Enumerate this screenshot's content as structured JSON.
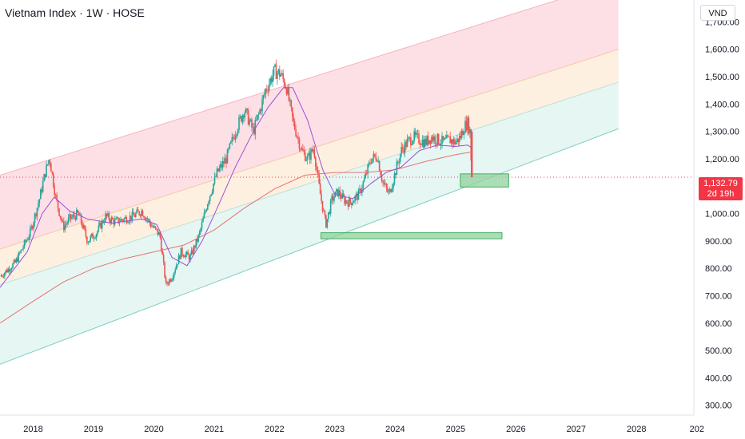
{
  "header": {
    "title": "Vietnam Index · 1W · HOSE",
    "currency": "VND"
  },
  "price_tag": {
    "value": "1,132.79",
    "countdown": "2d 19h"
  },
  "colors": {
    "up": "#26a69a",
    "down": "#ef5350",
    "ma_short": "#9c4fd6",
    "ma_long": "#e57373",
    "channel_top": "#f9c7cf",
    "channel_mid": "#fde3c6",
    "channel_low": "#d2efe9",
    "zone": "#8fd19e",
    "price_line": "#f23645"
  },
  "chart_data": {
    "type": "candlestick",
    "title": "Vietnam Index · 1W · HOSE",
    "x_ticks": [
      "2018",
      "2019",
      "2020",
      "2021",
      "2022",
      "2023",
      "2024",
      "2025",
      "2026",
      "2027",
      "2028",
      "202"
    ],
    "y_ticks": [
      "1,700.00",
      "1,600.00",
      "1,500.00",
      "1,400.00",
      "1,300.00",
      "1,200.00",
      "1,000.00",
      "900.00",
      "800.00",
      "700.00",
      "600.00",
      "500.00",
      "400.00",
      "300.00"
    ],
    "ylim": [
      270,
      1780
    ],
    "xlim": [
      2017.45,
      2028.95
    ],
    "last_price": 1132.79,
    "price_path": [
      [
        2017.45,
        770
      ],
      [
        2017.7,
        820
      ],
      [
        2017.95,
        930
      ],
      [
        2018.1,
        1050
      ],
      [
        2018.2,
        1150
      ],
      [
        2018.27,
        1205
      ],
      [
        2018.38,
        1050
      ],
      [
        2018.5,
        950
      ],
      [
        2018.6,
        980
      ],
      [
        2018.75,
        1000
      ],
      [
        2018.9,
        900
      ],
      [
        2019.05,
        930
      ],
      [
        2019.2,
        990
      ],
      [
        2019.35,
        970
      ],
      [
        2019.5,
        980
      ],
      [
        2019.65,
        990
      ],
      [
        2019.8,
        1010
      ],
      [
        2019.95,
        960
      ],
      [
        2020.1,
        920
      ],
      [
        2020.2,
        740
      ],
      [
        2020.3,
        770
      ],
      [
        2020.45,
        860
      ],
      [
        2020.6,
        840
      ],
      [
        2020.75,
        920
      ],
      [
        2020.9,
        1050
      ],
      [
        2021.05,
        1150
      ],
      [
        2021.2,
        1200
      ],
      [
        2021.35,
        1300
      ],
      [
        2021.5,
        1380
      ],
      [
        2021.65,
        1300
      ],
      [
        2021.75,
        1370
      ],
      [
        2021.85,
        1450
      ],
      [
        2022.0,
        1520
      ],
      [
        2022.1,
        1510
      ],
      [
        2022.2,
        1460
      ],
      [
        2022.3,
        1340
      ],
      [
        2022.45,
        1230
      ],
      [
        2022.55,
        1200
      ],
      [
        2022.65,
        1240
      ],
      [
        2022.75,
        1080
      ],
      [
        2022.85,
        960
      ],
      [
        2022.95,
        1050
      ],
      [
        2023.05,
        1080
      ],
      [
        2023.15,
        1050
      ],
      [
        2023.25,
        1040
      ],
      [
        2023.4,
        1070
      ],
      [
        2023.5,
        1130
      ],
      [
        2023.6,
        1200
      ],
      [
        2023.7,
        1210
      ],
      [
        2023.8,
        1110
      ],
      [
        2023.9,
        1070
      ],
      [
        2024.0,
        1150
      ],
      [
        2024.1,
        1230
      ],
      [
        2024.2,
        1260
      ],
      [
        2024.3,
        1280
      ],
      [
        2024.4,
        1270
      ],
      [
        2024.5,
        1260
      ],
      [
        2024.6,
        1280
      ],
      [
        2024.7,
        1270
      ],
      [
        2024.8,
        1260
      ],
      [
        2024.9,
        1270
      ],
      [
        2025.0,
        1260
      ],
      [
        2025.08,
        1280
      ],
      [
        2025.15,
        1320
      ],
      [
        2025.2,
        1330
      ],
      [
        2025.24,
        1300
      ],
      [
        2025.27,
        1132.79
      ]
    ],
    "ma_short_path": [
      [
        2017.45,
        730
      ],
      [
        2017.9,
        860
      ],
      [
        2018.15,
        1000
      ],
      [
        2018.35,
        1060
      ],
      [
        2018.6,
        1010
      ],
      [
        2018.9,
        980
      ],
      [
        2019.3,
        965
      ],
      [
        2019.8,
        980
      ],
      [
        2020.05,
        960
      ],
      [
        2020.3,
        840
      ],
      [
        2020.55,
        810
      ],
      [
        2020.8,
        900
      ],
      [
        2021.05,
        1020
      ],
      [
        2021.35,
        1170
      ],
      [
        2021.65,
        1300
      ],
      [
        2021.9,
        1390
      ],
      [
        2022.15,
        1460
      ],
      [
        2022.3,
        1460
      ],
      [
        2022.55,
        1340
      ],
      [
        2022.8,
        1160
      ],
      [
        2023.0,
        1070
      ],
      [
        2023.3,
        1055
      ],
      [
        2023.6,
        1110
      ],
      [
        2023.85,
        1150
      ],
      [
        2024.1,
        1170
      ],
      [
        2024.4,
        1230
      ],
      [
        2024.7,
        1250
      ],
      [
        2025.0,
        1245
      ],
      [
        2025.2,
        1250
      ],
      [
        2025.27,
        1240
      ]
    ],
    "ma_long_path": [
      [
        2017.45,
        600
      ],
      [
        2018.0,
        680
      ],
      [
        2018.5,
        750
      ],
      [
        2019.0,
        800
      ],
      [
        2019.5,
        835
      ],
      [
        2020.0,
        860
      ],
      [
        2020.5,
        885
      ],
      [
        2021.0,
        940
      ],
      [
        2021.5,
        1020
      ],
      [
        2022.0,
        1090
      ],
      [
        2022.5,
        1140
      ],
      [
        2023.0,
        1150
      ],
      [
        2023.5,
        1150
      ],
      [
        2024.0,
        1160
      ],
      [
        2024.5,
        1190
      ],
      [
        2025.0,
        1215
      ],
      [
        2025.27,
        1225
      ]
    ],
    "channel_lines": [
      {
        "x0": 2017.45,
        "y0": 1140,
        "x1": 2027.7,
        "y1": 1850
      },
      {
        "x0": 2017.45,
        "y0": 870,
        "x1": 2027.7,
        "y1": 1600
      },
      {
        "x0": 2017.45,
        "y0": 740,
        "x1": 2027.7,
        "y1": 1480
      },
      {
        "x0": 2017.45,
        "y0": 450,
        "x1": 2027.7,
        "y1": 1310
      }
    ],
    "zones": [
      {
        "x0": 2025.08,
        "x1": 2025.88,
        "y0": 1097,
        "y1": 1145
      },
      {
        "x0": 2022.77,
        "x1": 2025.77,
        "y0": 908,
        "y1": 930
      }
    ]
  }
}
